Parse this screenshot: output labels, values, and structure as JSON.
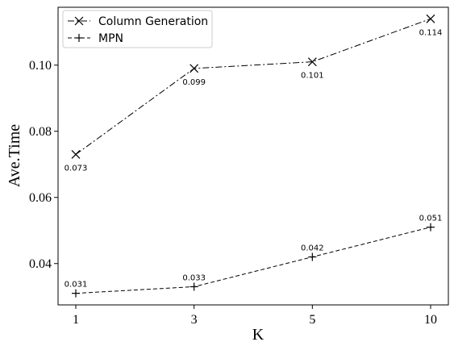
{
  "chart_data": {
    "type": "line",
    "categories": [
      "1",
      "3",
      "5",
      "10"
    ],
    "series": [
      {
        "name": "Column Generation",
        "values": [
          0.073,
          0.099,
          0.101,
          0.114
        ],
        "labels": [
          "0.073",
          "0.099",
          "0.101",
          "0.114"
        ],
        "marker": "x",
        "line_style": "dashdot",
        "label_position": "below"
      },
      {
        "name": "MPN",
        "values": [
          0.031,
          0.033,
          0.042,
          0.051
        ],
        "labels": [
          "0.031",
          "0.033",
          "0.042",
          "0.051"
        ],
        "marker": "+",
        "line_style": "dashed",
        "label_position": "above"
      }
    ],
    "xlabel": "K",
    "ylabel": "Ave.Time",
    "ylim": [
      0.0275,
      0.1175
    ],
    "yticks": [
      0.04,
      0.06,
      0.08,
      0.1
    ],
    "ytick_labels": [
      "0.04",
      "0.06",
      "0.08",
      "0.10"
    ],
    "grid": false,
    "legend_position": "top-left",
    "colors": {
      "line": "#000000",
      "background": "#ffffff"
    }
  }
}
